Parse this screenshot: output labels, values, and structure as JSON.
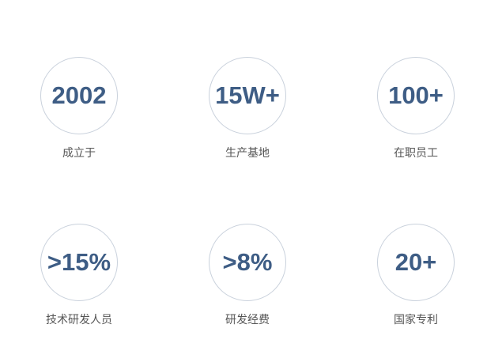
{
  "stats": [
    {
      "value": "2002",
      "label": "成立于"
    },
    {
      "value": "15W+",
      "label": "生产基地"
    },
    {
      "value": "100+",
      "label": "在职员工"
    },
    {
      "value": ">15%",
      "label": "技术研发人员"
    },
    {
      "value": ">8%",
      "label": "研发经费"
    },
    {
      "value": "20+",
      "label": "国家专利"
    }
  ],
  "colors": {
    "number": "#3e5d85",
    "circle_border": "#c9d1dc",
    "label": "#555555"
  }
}
